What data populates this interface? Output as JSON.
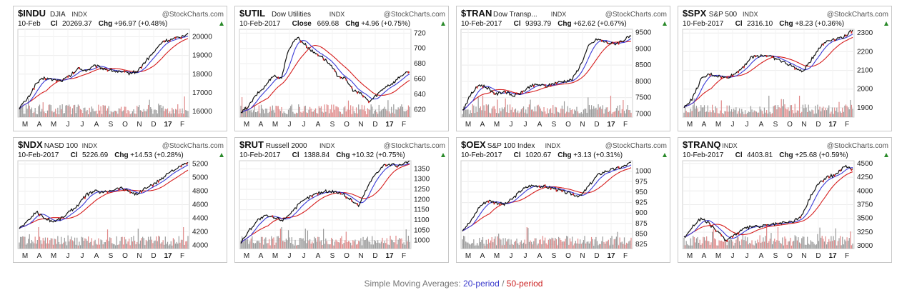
{
  "brand": "@StockCharts.com",
  "colors": {
    "price": "#111111",
    "sma20": "#3b3bd6",
    "sma50": "#d62020",
    "volume_up": "#9a9a9a",
    "volume_down": "#e08a8a",
    "accent": "#2a8a2a"
  },
  "months_labels": [
    "M",
    "A",
    "M",
    "J",
    "J",
    "A",
    "S",
    "O",
    "N",
    "D",
    "17",
    "F"
  ],
  "chart_data": [
    {
      "type": "line",
      "symbol": "$INDU",
      "name": "DJIA",
      "exchange": "INDX",
      "date": "10-Feb",
      "price_label": "Cl",
      "close": "20269.37",
      "change": "+96.97",
      "change_pct": "(+0.48%)",
      "yticks": [
        16000,
        17000,
        18000,
        19000,
        20000
      ],
      "ylim": [
        15700,
        20400
      ],
      "series": [
        {
          "values": [
            16200,
            16700,
            17500,
            17800,
            17700,
            17650,
            17900,
            18300,
            18200,
            18450,
            18300,
            18200,
            18100,
            18050,
            18150,
            18700,
            19200,
            19750,
            19850,
            19950,
            20200
          ]
        }
      ]
    },
    {
      "type": "line",
      "symbol": "$UTIL",
      "name": "Dow Utilities",
      "exchange": "INDX",
      "date": "10-Feb-2017",
      "price_label": "Close",
      "close": "669.68",
      "change": "+4.96",
      "change_pct": "(+0.75%)",
      "yticks": [
        620,
        640,
        660,
        680,
        700,
        720
      ],
      "ylim": [
        610,
        725
      ],
      "series": [
        {
          "values": [
            615,
            625,
            640,
            650,
            665,
            660,
            700,
            715,
            705,
            695,
            690,
            680,
            665,
            660,
            645,
            640,
            630,
            640,
            650,
            655,
            665,
            669
          ]
        }
      ]
    },
    {
      "type": "line",
      "symbol": "$TRAN",
      "name": "Dow Transp...",
      "exchange": "INDX",
      "date": "10-Feb-2017",
      "price_label": "Cl",
      "close": "9393.79",
      "change": "+62.62",
      "change_pct": "(+0.67%)",
      "yticks": [
        7000,
        7500,
        8000,
        8500,
        9000,
        9500
      ],
      "ylim": [
        6900,
        9600
      ],
      "series": [
        {
          "values": [
            7100,
            7600,
            7900,
            7800,
            7600,
            7700,
            7550,
            7650,
            7850,
            7900,
            7850,
            7950,
            8000,
            8050,
            8500,
            9100,
            9300,
            9200,
            9150,
            9250,
            9394
          ]
        }
      ]
    },
    {
      "type": "line",
      "symbol": "$SPX",
      "name": "S&P 500",
      "exchange": "INDX",
      "date": "10-Feb-2017",
      "price_label": "Cl",
      "close": "2316.10",
      "change": "+8.23",
      "change_pct": "(+0.36%)",
      "yticks": [
        1900,
        2000,
        2100,
        2200,
        2300
      ],
      "ylim": [
        1850,
        2320
      ],
      "series": [
        {
          "values": [
            1900,
            1950,
            2050,
            2080,
            2070,
            2060,
            2080,
            2120,
            2170,
            2180,
            2180,
            2160,
            2140,
            2120,
            2090,
            2150,
            2220,
            2260,
            2270,
            2280,
            2316
          ]
        }
      ]
    },
    {
      "type": "line",
      "symbol": "$NDX",
      "name": "NASD 100",
      "exchange": "INDX",
      "date": "10-Feb-2017",
      "price_label": "Cl",
      "close": "5226.69",
      "change": "+14.53",
      "change_pct": "(+0.28%)",
      "yticks": [
        4000,
        4200,
        4400,
        4600,
        4800,
        5000,
        5200
      ],
      "ylim": [
        3950,
        5250
      ],
      "series": [
        {
          "values": [
            4250,
            4350,
            4500,
            4400,
            4350,
            4400,
            4500,
            4600,
            4750,
            4800,
            4780,
            4820,
            4850,
            4800,
            4750,
            4850,
            4900,
            5000,
            5100,
            5150,
            5227
          ]
        }
      ]
    },
    {
      "type": "line",
      "symbol": "$RUT",
      "name": "Russell 2000",
      "exchange": "INDX",
      "date": "10-Feb-2017",
      "price_label": "Cl",
      "close": "1388.84",
      "change": "+10.32",
      "change_pct": "(+0.75%)",
      "yticks": [
        1000,
        1050,
        1100,
        1150,
        1200,
        1250,
        1300,
        1350
      ],
      "ylim": [
        960,
        1390
      ],
      "series": [
        {
          "values": [
            990,
            1050,
            1100,
            1120,
            1110,
            1100,
            1140,
            1180,
            1210,
            1230,
            1240,
            1240,
            1230,
            1200,
            1170,
            1260,
            1330,
            1370,
            1370,
            1365,
            1389
          ]
        }
      ]
    },
    {
      "type": "line",
      "symbol": "$OEX",
      "name": "S&P 100 Index",
      "exchange": "INDX",
      "date": "10-Feb-2017",
      "price_label": "Cl",
      "close": "1020.67",
      "change": "+3.13",
      "change_pct": "(+0.31%)",
      "yticks": [
        825,
        850,
        875,
        900,
        925,
        950,
        975,
        1000
      ],
      "ylim": [
        815,
        1025
      ],
      "series": [
        {
          "values": [
            860,
            880,
            915,
            930,
            925,
            920,
            935,
            955,
            965,
            965,
            962,
            958,
            950,
            945,
            940,
            965,
            990,
            1000,
            1005,
            1010,
            1021
          ]
        }
      ]
    },
    {
      "type": "line",
      "symbol": "$TRANQ",
      "name": "",
      "exchange": "INDX",
      "date": "10-Feb-2017",
      "price_label": "Cl",
      "close": "4403.81",
      "change": "+25.68",
      "change_pct": "(+0.59%)",
      "yticks": [
        3000,
        3250,
        3500,
        3750,
        4000,
        4250,
        4500
      ],
      "ylim": [
        2950,
        4550
      ],
      "series": [
        {
          "values": [
            3150,
            3350,
            3500,
            3400,
            3250,
            3100,
            3200,
            3300,
            3350,
            3350,
            3380,
            3400,
            3420,
            3450,
            3550,
            3900,
            4150,
            4250,
            4300,
            4450,
            4404
          ]
        }
      ]
    }
  ],
  "footer": {
    "prefix": "Simple Moving Averages: ",
    "sma20": "20-period",
    "sep": " / ",
    "sma50": "50-period"
  }
}
